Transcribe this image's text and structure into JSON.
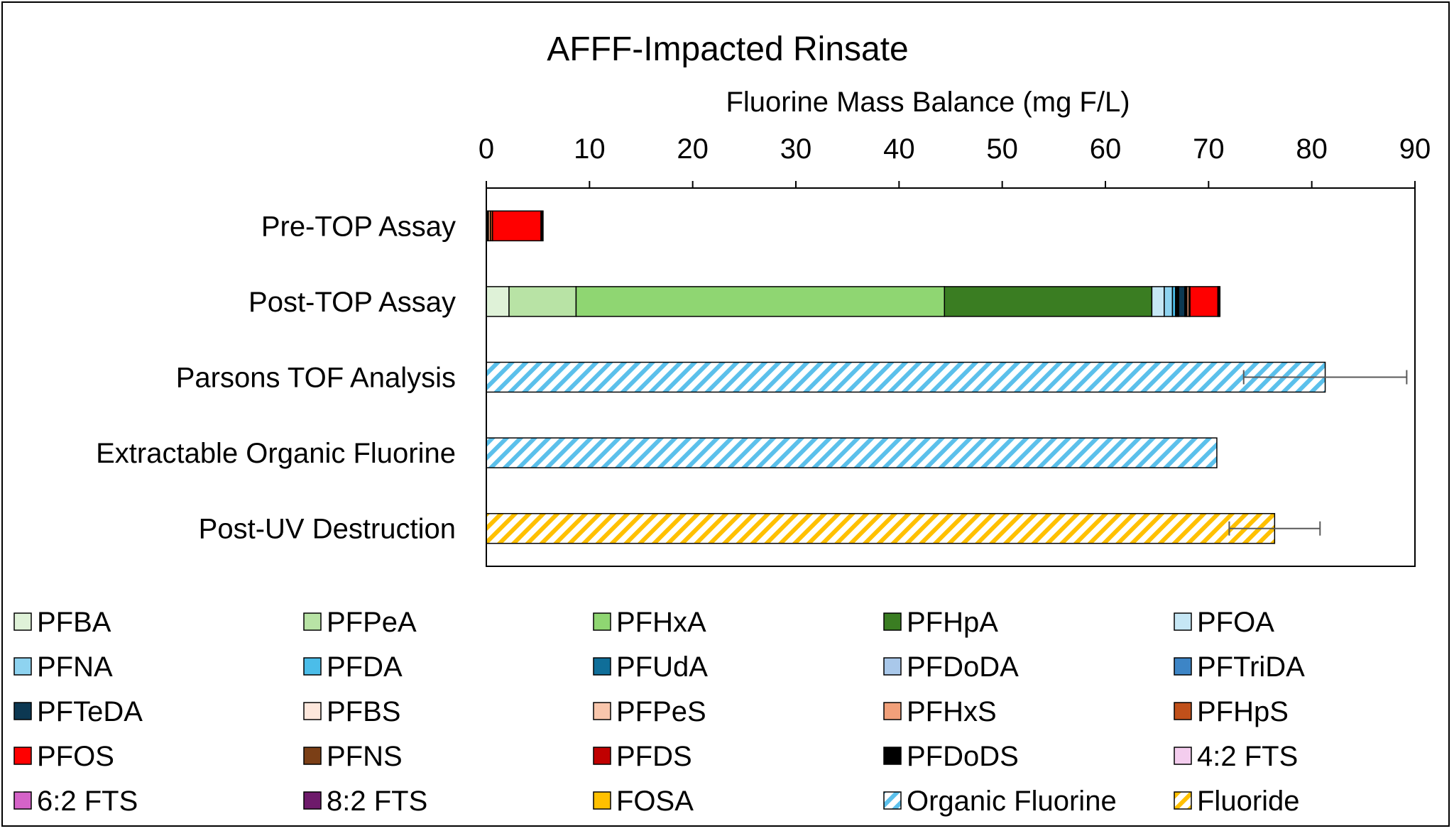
{
  "chart_data": {
    "type": "bar",
    "orientation": "horizontal",
    "stacked": true,
    "title": "AFFF-Impacted Rinsate",
    "xlabel": "Fluorine Mass Balance (mg F/L)",
    "ylabel": "",
    "xlim": [
      0,
      90
    ],
    "xticks": [
      "0",
      "10",
      "20",
      "30",
      "40",
      "50",
      "60",
      "70",
      "80",
      "90"
    ],
    "xaxis_position": "top",
    "grid": false,
    "legend_position": "bottom",
    "categories": [
      "Pre-TOP Assay",
      "Post-TOP Assay",
      "Parsons TOF Analysis",
      "Extractable Organic Fluorine",
      "Post-UV Destruction"
    ],
    "series": [
      {
        "name": "PFBA",
        "color": "#dff2d8",
        "pattern": "solid",
        "values": [
          0,
          2.2,
          0,
          0,
          0
        ]
      },
      {
        "name": "PFPeA",
        "color": "#b8e3a5",
        "pattern": "solid",
        "values": [
          0,
          6.5,
          0,
          0,
          0
        ]
      },
      {
        "name": "PFHxA",
        "color": "#8fd672",
        "pattern": "solid",
        "values": [
          0,
          35.7,
          0,
          0,
          0
        ]
      },
      {
        "name": "PFHpA",
        "color": "#3a7d22",
        "pattern": "solid",
        "values": [
          0,
          20.1,
          0,
          0,
          0
        ]
      },
      {
        "name": "PFOA",
        "color": "#c6e7f5",
        "pattern": "solid",
        "values": [
          0,
          1.2,
          0,
          0,
          0
        ]
      },
      {
        "name": "PFNA",
        "color": "#8ed3f0",
        "pattern": "solid",
        "values": [
          0,
          0.8,
          0,
          0,
          0
        ]
      },
      {
        "name": "PFDA",
        "color": "#4bbde9",
        "pattern": "solid",
        "values": [
          0,
          0.3,
          0,
          0,
          0
        ]
      },
      {
        "name": "PFUdA",
        "color": "#0f6e99",
        "pattern": "solid",
        "values": [
          0,
          0.1,
          0,
          0,
          0
        ]
      },
      {
        "name": "PFDoDA",
        "color": "#a9c8ea",
        "pattern": "solid",
        "values": [
          0,
          0.1,
          0,
          0,
          0
        ]
      },
      {
        "name": "PFTriDA",
        "color": "#3d85c6",
        "pattern": "solid",
        "values": [
          0,
          0.1,
          0,
          0,
          0
        ]
      },
      {
        "name": "PFTeDA",
        "color": "#0c3852",
        "pattern": "solid",
        "values": [
          0,
          0.6,
          0,
          0,
          0
        ]
      },
      {
        "name": "PFBS",
        "color": "#fde7dc",
        "pattern": "solid",
        "values": [
          0.1,
          0.1,
          0,
          0,
          0
        ]
      },
      {
        "name": "PFPeS",
        "color": "#f8c6ac",
        "pattern": "solid",
        "values": [
          0.1,
          0.1,
          0,
          0,
          0
        ]
      },
      {
        "name": "PFHxS",
        "color": "#f1a07a",
        "pattern": "solid",
        "values": [
          0.2,
          0.2,
          0,
          0,
          0
        ]
      },
      {
        "name": "PFHpS",
        "color": "#c0501a",
        "pattern": "solid",
        "values": [
          0.2,
          0.1,
          0,
          0,
          0
        ]
      },
      {
        "name": "PFOS",
        "color": "#ff0000",
        "pattern": "solid",
        "values": [
          4.7,
          2.7,
          0,
          0,
          0
        ]
      },
      {
        "name": "PFNS",
        "color": "#7b3f16",
        "pattern": "solid",
        "values": [
          0.1,
          0.1,
          0,
          0,
          0
        ]
      },
      {
        "name": "PFDS",
        "color": "#c00000",
        "pattern": "solid",
        "values": [
          0.1,
          0.1,
          0,
          0,
          0
        ]
      },
      {
        "name": "PFDoDS",
        "color": "#000000",
        "pattern": "solid",
        "values": [
          0,
          0,
          0,
          0,
          0
        ]
      },
      {
        "name": "4:2 FTS",
        "color": "#f4cdee",
        "pattern": "solid",
        "values": [
          0,
          0,
          0,
          0,
          0
        ]
      },
      {
        "name": "6:2 FTS",
        "color": "#d563c8",
        "pattern": "solid",
        "values": [
          0,
          0,
          0,
          0,
          0
        ]
      },
      {
        "name": "8:2 FTS",
        "color": "#6e1a6b",
        "pattern": "solid",
        "values": [
          0,
          0,
          0,
          0,
          0
        ]
      },
      {
        "name": "FOSA",
        "color": "#ffc000",
        "pattern": "solid",
        "values": [
          0,
          0,
          0,
          0,
          0
        ]
      },
      {
        "name": "Organic Fluorine",
        "color": "#5bc0eb",
        "pattern": "hatch",
        "values": [
          0,
          0,
          81.3,
          70.8,
          0
        ]
      },
      {
        "name": "Fluoride",
        "color": "#ffc000",
        "pattern": "hatch",
        "values": [
          0,
          0,
          0,
          0,
          76.4
        ]
      }
    ],
    "error_bars": [
      {
        "category": "Parsons TOF Analysis",
        "low": 73.4,
        "high": 89.2
      },
      {
        "category": "Post-UV Destruction",
        "low": 72.0,
        "high": 80.8
      }
    ]
  }
}
